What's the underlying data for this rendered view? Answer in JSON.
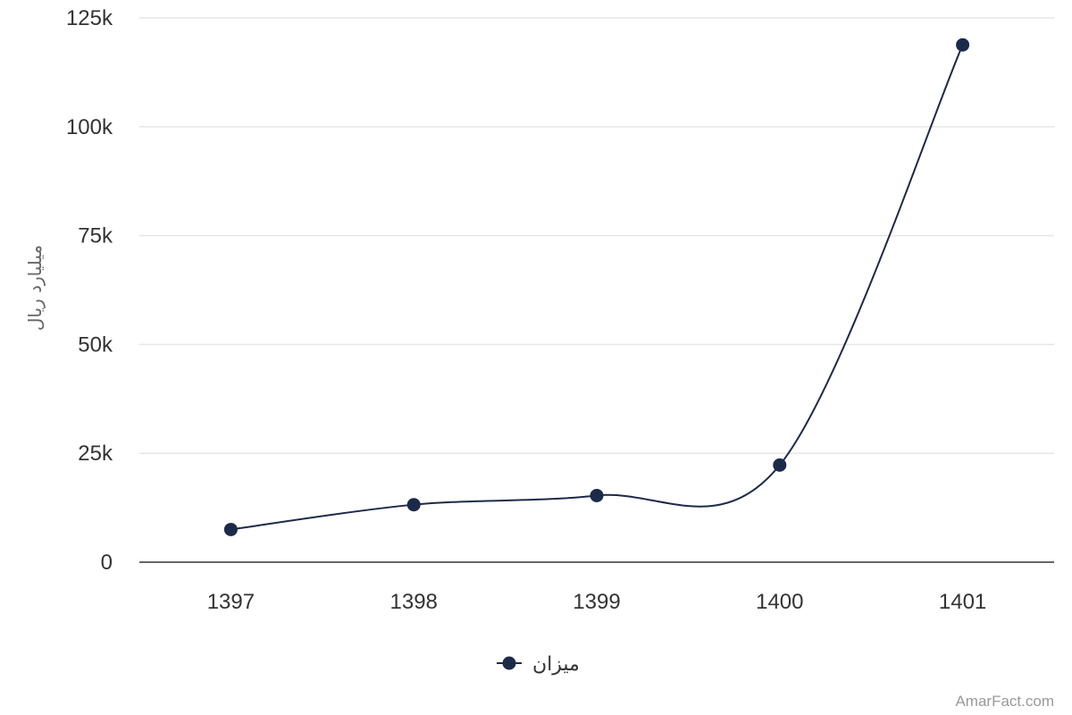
{
  "chart_data": {
    "type": "line",
    "categories": [
      "1397",
      "1398",
      "1399",
      "1400",
      "1401"
    ],
    "series": [
      {
        "name": "میزان",
        "values": [
          7500,
          13200,
          15300,
          22300,
          118800
        ],
        "color": "#1c2a4a"
      }
    ],
    "ylabel": "میلیارد ریال",
    "xlabel": "",
    "ylim": [
      0,
      125000
    ],
    "yticks": [
      0,
      25000,
      50000,
      75000,
      100000,
      125000
    ],
    "ytick_labels": [
      "0",
      "25k",
      "50k",
      "75k",
      "100k",
      "125k"
    ],
    "grid": true,
    "legend": "bottom-center",
    "smooth": true
  },
  "credit": "AmarFact.com"
}
